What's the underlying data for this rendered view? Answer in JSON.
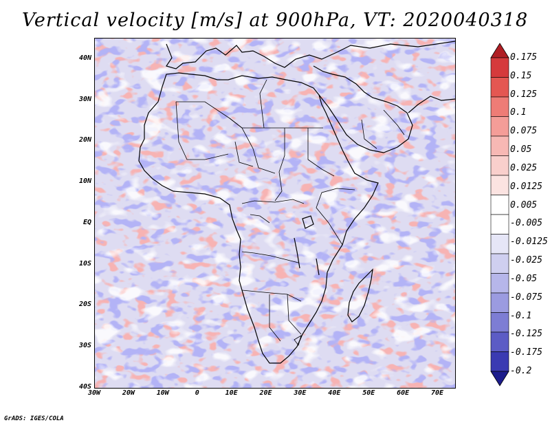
{
  "title": "Vertical velocity [m/s] at 900hPa, VT: 2020040318",
  "map": {
    "region": "Africa",
    "projection": "latlon",
    "lon_range": [
      -30,
      75
    ],
    "lat_range": [
      -40,
      45
    ],
    "lat_labels": [
      "40N",
      "30N",
      "20N",
      "10N",
      "EQ",
      "10S",
      "20S",
      "30S",
      "40S"
    ],
    "lon_labels": [
      "30W",
      "20W",
      "10W",
      "0",
      "10E",
      "20E",
      "30E",
      "40E",
      "50E",
      "60E",
      "70E"
    ]
  },
  "colorbar": {
    "labels": [
      "0.175",
      "0.15",
      "0.125",
      "0.1",
      "0.075",
      "0.05",
      "0.025",
      "0.0125",
      "0.005",
      "-0.005",
      "-0.0125",
      "-0.025",
      "-0.05",
      "-0.075",
      "-0.1",
      "-0.125",
      "-0.175",
      "-0.2"
    ],
    "colors": [
      "#c2232a",
      "#d53a3c",
      "#e45752",
      "#ee7c76",
      "#f49d98",
      "#f7b8b4",
      "#f9cfcc",
      "#fbe3e1",
      "#ffffff",
      "#ffffff",
      "#e6e6f7",
      "#cfcff0",
      "#b6b6ea",
      "#9b9be0",
      "#7d7dd4",
      "#5c5cc5",
      "#3a3ab2",
      "#2020a0"
    ],
    "top_arrow_color": "#b01e24",
    "bottom_arrow_color": "#1c1c8c"
  },
  "credit": "GrADS: IGES/COLA"
}
